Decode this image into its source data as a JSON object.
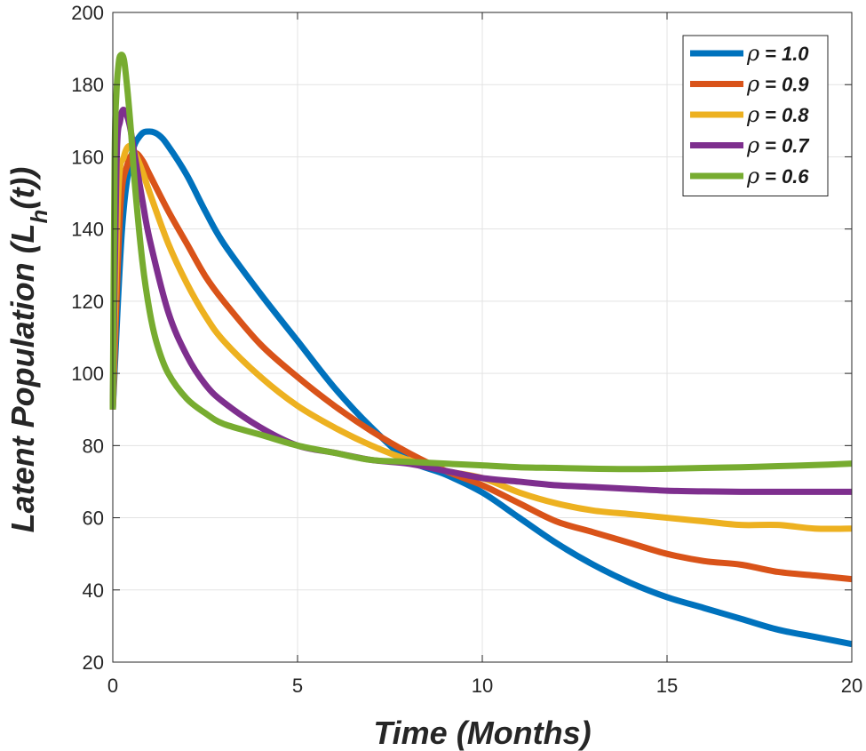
{
  "chart_data": {
    "type": "line",
    "title": "",
    "xlabel": "Time (Months)",
    "ylabel": {
      "main": "Latent Population (L",
      "sub": "h",
      "tail": "(t))"
    },
    "xlim": [
      0,
      20
    ],
    "ylim": [
      20,
      200
    ],
    "xticks": [
      0,
      5,
      10,
      15,
      20
    ],
    "yticks": [
      20,
      40,
      60,
      80,
      100,
      120,
      140,
      160,
      180,
      200
    ],
    "grid": true,
    "legend_position": "top-right",
    "legend_symbol": "ρ",
    "series": [
      {
        "name": "= 1.0",
        "color": "#0072BD",
        "x": [
          0,
          0.25,
          0.5,
          0.75,
          1,
          1.25,
          1.5,
          2,
          2.5,
          3,
          4,
          5,
          6,
          7,
          8,
          9,
          10,
          11,
          12,
          13,
          14,
          15,
          16,
          17,
          18,
          19,
          20
        ],
        "y": [
          90,
          140,
          160,
          166,
          167,
          166,
          163,
          155,
          145,
          136,
          122,
          109,
          96,
          85,
          76,
          72,
          67,
          60,
          53,
          47,
          42,
          38,
          35,
          32,
          29,
          27,
          25
        ]
      },
      {
        "name": "= 0.9",
        "color": "#D95319",
        "x": [
          0,
          0.2,
          0.4,
          0.6,
          0.8,
          1,
          1.5,
          2,
          2.5,
          3,
          4,
          5,
          6,
          7,
          8,
          9,
          10,
          11,
          12,
          13,
          14,
          15,
          16,
          17,
          18,
          19,
          20
        ],
        "y": [
          90,
          145,
          158,
          161,
          159,
          155,
          145,
          136,
          127,
          120,
          108,
          99,
          91,
          84,
          78,
          73,
          69,
          64,
          59,
          56,
          53,
          50,
          48,
          47,
          45,
          44,
          43
        ]
      },
      {
        "name": "= 0.8",
        "color": "#EDB120",
        "x": [
          0,
          0.15,
          0.3,
          0.45,
          0.6,
          0.8,
          1,
          1.5,
          2,
          2.5,
          3,
          4,
          5,
          6,
          7,
          8,
          9,
          10,
          11,
          12,
          13,
          14,
          15,
          16,
          17,
          18,
          19,
          20
        ],
        "y": [
          90,
          150,
          160,
          163,
          161,
          156,
          150,
          136,
          125,
          116,
          109,
          99,
          91,
          85,
          80,
          76,
          73,
          71,
          67,
          64,
          62,
          61,
          60,
          59,
          58,
          58,
          57,
          57
        ]
      },
      {
        "name": "= 0.7",
        "color": "#7E2F8E",
        "x": [
          0,
          0.1,
          0.2,
          0.3,
          0.45,
          0.6,
          0.8,
          1,
          1.5,
          2,
          2.5,
          3,
          4,
          5,
          6,
          7,
          8,
          9,
          10,
          11,
          12,
          13,
          14,
          15,
          16,
          17,
          18,
          19,
          20
        ],
        "y": [
          90,
          158,
          170,
          173,
          169,
          160,
          148,
          137,
          117,
          105,
          97,
          92,
          85,
          80,
          78,
          76,
          75,
          73,
          71,
          70,
          69,
          68.5,
          68,
          67.5,
          67.3,
          67.2,
          67.2,
          67.2,
          67.2
        ]
      },
      {
        "name": "= 0.6",
        "color": "#77AC30",
        "x": [
          0,
          0.05,
          0.1,
          0.15,
          0.2,
          0.3,
          0.4,
          0.5,
          0.6,
          0.8,
          1,
          1.2,
          1.5,
          2,
          2.5,
          3,
          4,
          5,
          6,
          7,
          8,
          9,
          10,
          11,
          12,
          13,
          14,
          15,
          16,
          17,
          18,
          19,
          20
        ],
        "y": [
          90,
          160,
          178,
          185,
          188,
          187,
          178,
          166,
          152,
          131,
          117,
          108,
          100,
          93,
          89,
          86,
          83,
          80,
          78,
          76,
          75.5,
          75,
          74.5,
          74,
          73.8,
          73.6,
          73.5,
          73.6,
          73.8,
          74,
          74.3,
          74.6,
          75
        ]
      }
    ]
  }
}
